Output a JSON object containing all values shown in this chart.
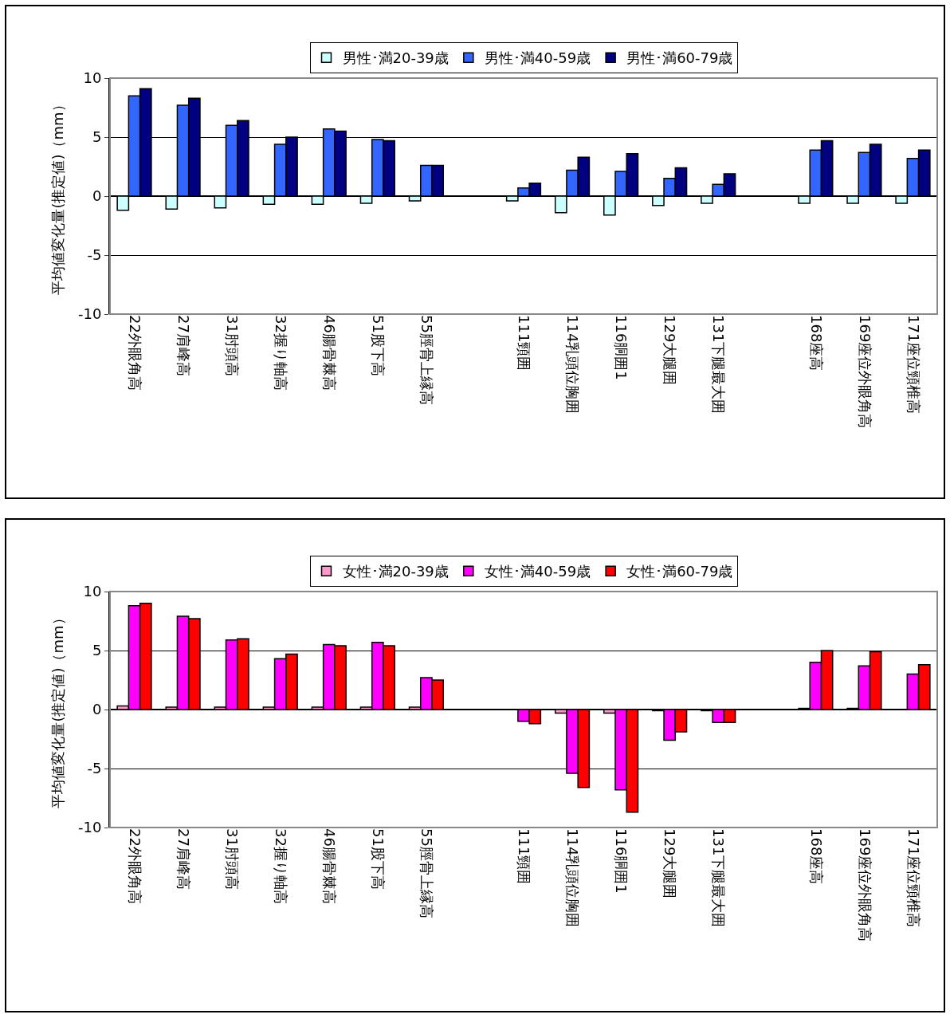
{
  "chart_data": [
    {
      "type": "bar",
      "ylabel": "平均値変化量(推定値)（mm）",
      "categories": [
        "22外眼角高",
        "27肩峰高",
        "31肘頭高",
        "32握り軸高",
        "46腸骨棘高",
        "51股下高",
        "55脛骨上縁高",
        null,
        "111頸囲",
        "114乳頭位胸囲",
        "116胴囲1",
        "129大腿囲",
        "131下腿最大囲",
        null,
        "168座高",
        "169座位外眼角高",
        "171座位頸椎高"
      ],
      "series": [
        {
          "name": "男性･満20-39歳",
          "color": "#ccffff",
          "values": [
            -1.2,
            -1.1,
            -1.0,
            -0.7,
            -0.7,
            -0.6,
            -0.4,
            null,
            -0.4,
            -1.4,
            -1.6,
            -0.8,
            -0.6,
            null,
            -0.6,
            -0.6,
            -0.6
          ]
        },
        {
          "name": "男性･満40-59歳",
          "color": "#3366ff",
          "values": [
            8.5,
            7.7,
            6.0,
            4.4,
            5.7,
            4.8,
            2.6,
            null,
            0.7,
            2.2,
            2.1,
            1.5,
            1.0,
            null,
            3.9,
            3.7,
            3.2
          ]
        },
        {
          "name": "男性･満60-79歳",
          "color": "#000080",
          "values": [
            9.1,
            8.3,
            6.4,
            5.0,
            5.5,
            4.7,
            2.6,
            null,
            1.1,
            3.3,
            3.6,
            2.4,
            1.9,
            null,
            4.7,
            4.4,
            3.9
          ]
        }
      ],
      "ylim": [
        -10,
        10
      ],
      "yticks": [
        -10,
        -5,
        0,
        5,
        10
      ],
      "grid": "y",
      "legend": "top"
    },
    {
      "type": "bar",
      "ylabel": "平均値変化量(推定値)（mm）",
      "categories": [
        "22外眼角高",
        "27肩峰高",
        "31肘頭高",
        "32握り軸高",
        "46腸骨棘高",
        "51股下高",
        "55脛骨上縁高",
        null,
        "111頸囲",
        "114乳頭位胸囲",
        "116胴囲1",
        "129大腿囲",
        "131下腿最大囲",
        null,
        "168座高",
        "169座位外眼角高",
        "171座位頸椎高"
      ],
      "series": [
        {
          "name": "女性･満20-39歳",
          "color": "#ff99cc",
          "values": [
            0.3,
            0.2,
            0.2,
            0.2,
            0.2,
            0.2,
            0.2,
            null,
            null,
            -0.3,
            -0.3,
            -0.1,
            -0.1,
            null,
            0.1,
            0.1,
            null
          ]
        },
        {
          "name": "女性･満40-59歳",
          "color": "#ff00ff",
          "values": [
            8.8,
            7.9,
            5.9,
            4.3,
            5.5,
            5.7,
            2.7,
            null,
            -1.0,
            -5.4,
            -6.8,
            -2.6,
            -1.1,
            null,
            4.0,
            3.7,
            3.0
          ]
        },
        {
          "name": "女性･満60-79歳",
          "color": "#ff0000",
          "values": [
            9.0,
            7.7,
            6.0,
            4.7,
            5.4,
            5.4,
            2.5,
            null,
            -1.2,
            -6.6,
            -8.7,
            -1.9,
            -1.1,
            null,
            5.0,
            4.9,
            3.8
          ]
        }
      ],
      "ylim": [
        -10,
        10
      ],
      "yticks": [
        -10,
        -5,
        0,
        5,
        10
      ],
      "grid": "y",
      "legend": "top"
    }
  ]
}
